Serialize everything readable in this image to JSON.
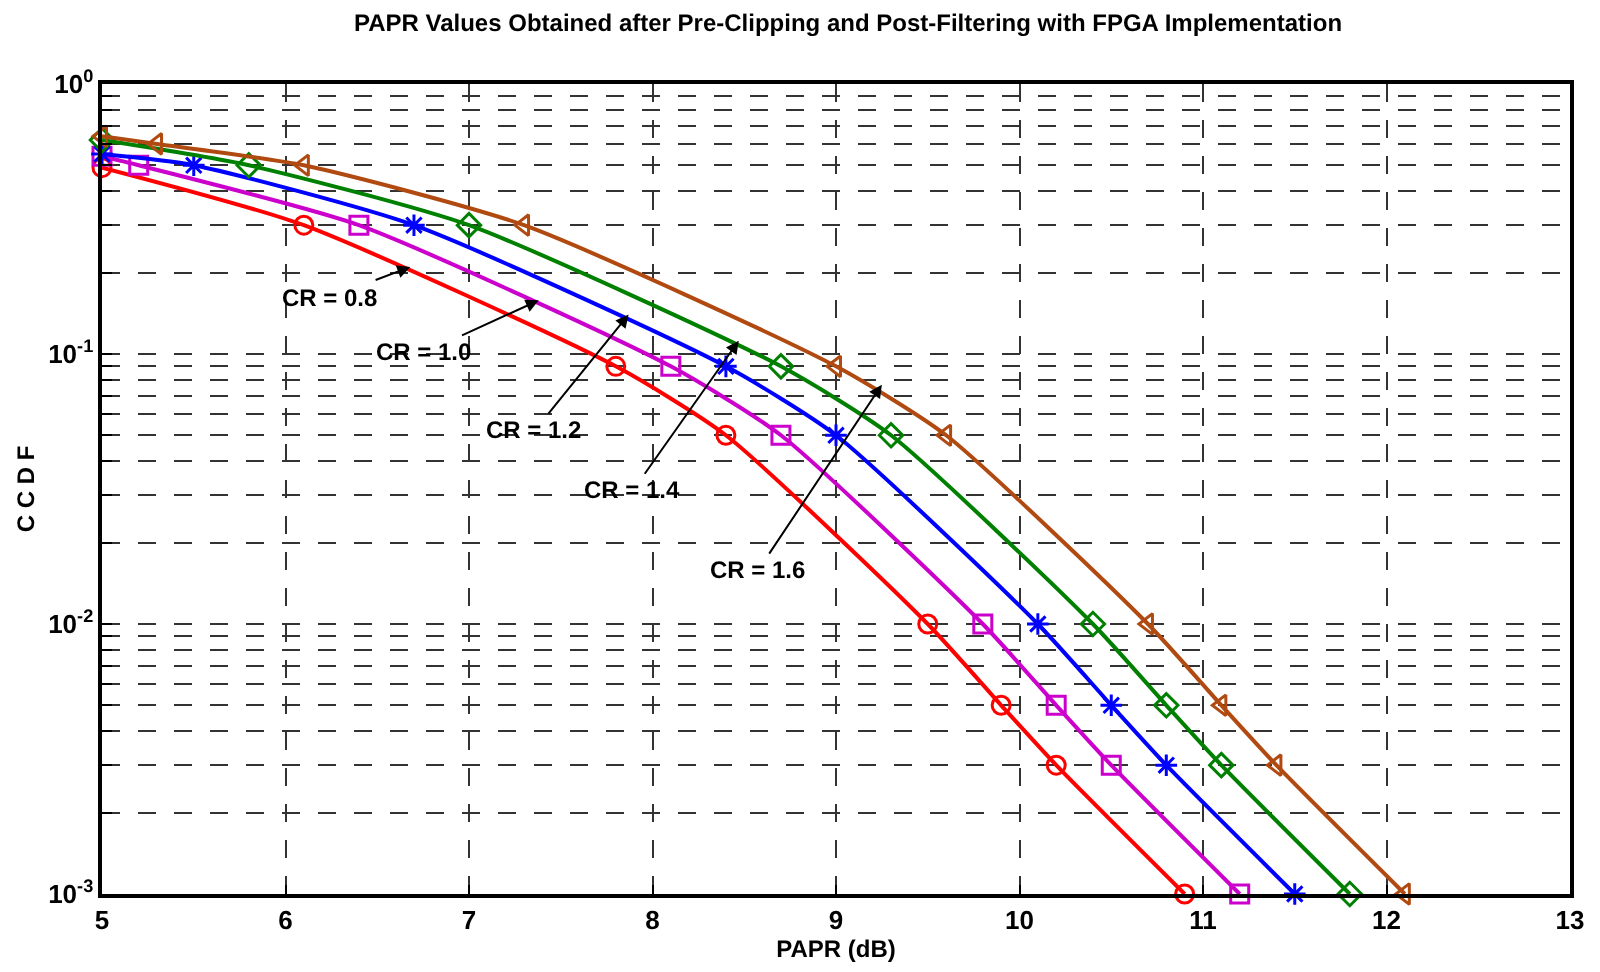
{
  "chart_data": {
    "type": "line",
    "title": "PAPR Values Obtained after Pre-Clipping and Post-Filtering with FPGA Implementation",
    "xlabel": "PAPR (dB)",
    "ylabel": "C C D F",
    "log": "y",
    "grid": true,
    "line_style": "solid",
    "xlim": [
      5,
      13
    ],
    "xticks": [
      5,
      6,
      7,
      8,
      9,
      10,
      11,
      12,
      13
    ],
    "ylim": [
      0.001,
      1
    ],
    "yticks": [
      {
        "value": 0.001,
        "label": "10$^{-3}$"
      },
      {
        "value": 0.002,
        "label": null
      },
      {
        "value": 0.003,
        "label": null
      },
      {
        "value": 0.004,
        "label": null
      },
      {
        "value": 0.005,
        "label": null
      },
      {
        "value": 0.006,
        "label": null
      },
      {
        "value": 0.007,
        "label": null
      },
      {
        "value": 0.008,
        "label": null
      },
      {
        "value": 0.009,
        "label": null
      },
      {
        "value": 0.01,
        "label": "10$^{-2}$"
      },
      {
        "value": 0.02,
        "label": null
      },
      {
        "value": 0.03,
        "label": null
      },
      {
        "value": 0.04,
        "label": null
      },
      {
        "value": 0.05,
        "label": null
      },
      {
        "value": 0.06,
        "label": null
      },
      {
        "value": 0.07,
        "label": null
      },
      {
        "value": 0.08,
        "label": null
      },
      {
        "value": 0.09,
        "label": null
      },
      {
        "value": 0.1,
        "label": "10$^{-1}$"
      },
      {
        "value": 0.2,
        "label": null
      },
      {
        "value": 0.3,
        "label": null
      },
      {
        "value": 0.4,
        "label": null
      },
      {
        "value": 0.5,
        "label": null
      },
      {
        "value": 0.6,
        "label": null
      },
      {
        "value": 0.7,
        "label": null
      },
      {
        "value": 0.8,
        "label": null
      },
      {
        "value": 0.9,
        "label": null
      },
      {
        "value": 1,
        "label": "10$^{0}$"
      }
    ],
    "series": [
      {
        "color": "#ff0000",
        "marker": "circle",
        "x": [
          5,
          6.1,
          7.8,
          8.4,
          9.5,
          9.9,
          10.2,
          10.9
        ],
        "values": [
          0.49,
          0.3,
          0.09,
          0.05,
          0.01,
          0.005,
          0.003,
          0.001
        ]
      },
      {
        "color": "#cc00cc",
        "marker": "square",
        "x": [
          5,
          5.2,
          6.4,
          8.1,
          8.7,
          9.8,
          10.2,
          10.5,
          11.2
        ],
        "values": [
          0.54,
          0.5,
          0.3,
          0.09,
          0.05,
          0.01,
          0.005,
          0.003,
          0.001
        ]
      },
      {
        "color": "#0000ff",
        "marker": "cross",
        "x": [
          5,
          5.5,
          6.7,
          8.4,
          9.0,
          10.1,
          10.5,
          10.8,
          11.5
        ],
        "values": [
          0.55,
          0.5,
          0.3,
          0.09,
          0.05,
          0.01,
          0.005,
          0.003,
          0.001
        ]
      },
      {
        "color": "#008000",
        "marker": "diamond",
        "x": [
          5,
          5.8,
          7.0,
          8.7,
          9.3,
          10.4,
          10.8,
          11.1,
          11.8
        ],
        "values": [
          0.62,
          0.5,
          0.3,
          0.09,
          0.05,
          0.01,
          0.005,
          0.003,
          0.001
        ]
      },
      {
        "color": "#b04a10",
        "marker": "triangle",
        "x": [
          5,
          5.3,
          6.1,
          7.3,
          9.0,
          9.6,
          10.7,
          11.1,
          11.4,
          12.1
        ],
        "values": [
          0.64,
          0.6,
          0.5,
          0.3,
          0.09,
          0.05,
          0.01,
          0.005,
          0.003,
          0.001
        ]
      }
    ],
    "annotations": [
      {
        "text": "CR = 0.8",
        "x": 6.68,
        "y": 0.21
      },
      {
        "text": "CR = 1.0",
        "x": 7.38,
        "y": 0.158
      },
      {
        "text": "CR = 1.2",
        "x": 7.87,
        "y": 0.14
      },
      {
        "text": "CR = 1.4",
        "x": 8.47,
        "y": 0.112
      },
      {
        "text": "CR = 1.6",
        "x": 9.25,
        "y": 0.077
      }
    ]
  }
}
